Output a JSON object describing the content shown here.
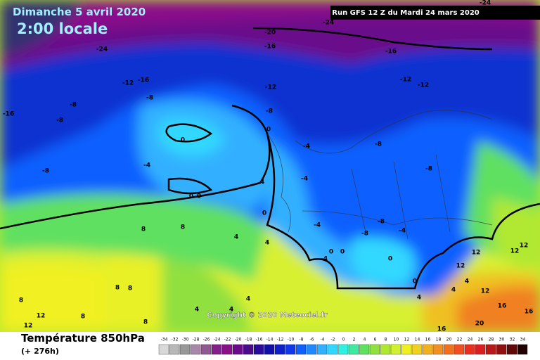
{
  "header": {
    "date": "Dimanche 5 avril 2020",
    "time": "2:00 locale",
    "run": "Run GFS 12 Z du Mardi 24 mars 2020"
  },
  "map": {
    "copyright": "Copyright © 2020 Meteociel.fr",
    "contour_labels": [
      -24,
      -24,
      -24,
      -20,
      -16,
      -16,
      -16,
      -12,
      -16,
      -12,
      -12,
      -12,
      -8,
      -8,
      -8,
      -8,
      0,
      0,
      -4,
      -8,
      -8,
      -8,
      -4,
      -4,
      4,
      0,
      0,
      0,
      -4,
      -8,
      -8,
      -4,
      8,
      8,
      4,
      4,
      0,
      0,
      -4,
      0,
      12,
      12,
      12,
      12,
      8,
      8,
      12,
      4,
      4,
      8,
      4,
      16,
      16,
      16,
      20,
      4,
      4,
      12,
      12,
      8,
      8,
      4,
      0
    ]
  },
  "footer": {
    "title": "Température 850hPa",
    "lead": "(+ 276h)"
  },
  "legend": {
    "values": [
      -34,
      -32,
      -30,
      -28,
      -26,
      -24,
      -22,
      -20,
      -18,
      -16,
      -14,
      -12,
      -10,
      -8,
      -6,
      -4,
      -2,
      0,
      2,
      4,
      6,
      8,
      10,
      12,
      14,
      16,
      18,
      20,
      22,
      24,
      26,
      28,
      30,
      32,
      34
    ],
    "colors": [
      "#d8d8d8",
      "#b8b8b8",
      "#989898",
      "#a888a8",
      "#905890",
      "#80208a",
      "#8a108a",
      "#6a0a8a",
      "#4a0a8a",
      "#2a0a9a",
      "#1010a8",
      "#1020c8",
      "#1038e8",
      "#1060ff",
      "#2088ff",
      "#30b0ff",
      "#30d8ff",
      "#30f0e0",
      "#40e8a0",
      "#60e060",
      "#90e040",
      "#b0e830",
      "#d0f030",
      "#f0f020",
      "#f0d020",
      "#f0b020",
      "#f09020",
      "#f07020",
      "#f05020",
      "#e83020",
      "#d82020",
      "#b81818",
      "#901010",
      "#600808",
      "#200000"
    ]
  }
}
